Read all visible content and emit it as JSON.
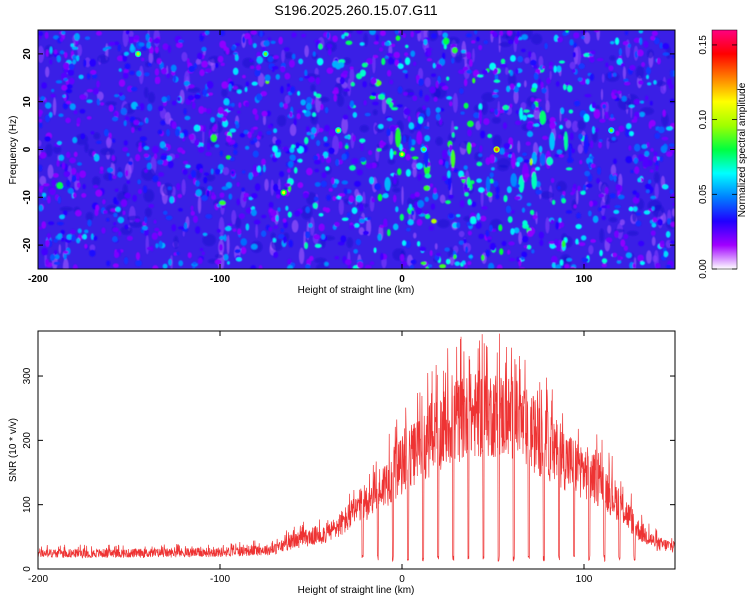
{
  "title": "S196.2025.260.15.07.G11",
  "chart_data": [
    {
      "type": "heatmap",
      "xlabel": "Height of straight line (km)",
      "ylabel": "Frequency (Hz)",
      "xlim": [
        -200,
        150
      ],
      "ylim": [
        -25,
        25
      ],
      "x_ticks": [
        -200,
        -100,
        0,
        100
      ],
      "y_ticks": [
        -20,
        -10,
        0,
        10,
        20
      ],
      "colorbar": {
        "label": "Normalized spectral amplitude",
        "range": [
          0,
          0.16
        ],
        "ticks": [
          0.0,
          0.05,
          0.1,
          0.15
        ],
        "tick_labels": [
          "0.00",
          "0.05",
          "0.10",
          "0.15"
        ],
        "colormap": [
          "#ffffff",
          "#a000ff",
          "#2000ff",
          "#0080ff",
          "#00ffff",
          "#00ff40",
          "#a0ff00",
          "#ffff00",
          "#ff8000",
          "#ff0000",
          "#ff0080"
        ]
      },
      "background_color": "#3a1fe6",
      "hot_spots": [
        {
          "x": -145,
          "y": 20,
          "value": 0.1
        },
        {
          "x": -75,
          "y": 20,
          "value": 0.09
        },
        {
          "x": -65,
          "y": -9,
          "value": 0.11
        },
        {
          "x": -35,
          "y": 4,
          "value": 0.1
        },
        {
          "x": 0,
          "y": -1,
          "value": 0.11
        },
        {
          "x": 12,
          "y": 0,
          "value": 0.09
        },
        {
          "x": 52,
          "y": 0,
          "value": 0.13
        },
        {
          "x": 115,
          "y": 4,
          "value": 0.09
        }
      ]
    },
    {
      "type": "line",
      "xlabel": "Height of straight line (km)",
      "ylabel": "SNR (10 * v/v)",
      "xlim": [
        -200,
        150
      ],
      "ylim": [
        0,
        370
      ],
      "x_ticks": [
        -200,
        -100,
        0,
        100
      ],
      "y_ticks": [
        0,
        100,
        200,
        300
      ],
      "series": [
        {
          "color": "#ee3333",
          "envelope": [
            {
              "x": -200,
              "y": 28
            },
            {
              "x": -150,
              "y": 28
            },
            {
              "x": -100,
              "y": 30
            },
            {
              "x": -70,
              "y": 35
            },
            {
              "x": -60,
              "y": 50
            },
            {
              "x": -40,
              "y": 65
            },
            {
              "x": -30,
              "y": 90
            },
            {
              "x": -20,
              "y": 120
            },
            {
              "x": -10,
              "y": 150
            },
            {
              "x": 0,
              "y": 185
            },
            {
              "x": 10,
              "y": 215
            },
            {
              "x": 20,
              "y": 245
            },
            {
              "x": 30,
              "y": 265
            },
            {
              "x": 40,
              "y": 275
            },
            {
              "x": 50,
              "y": 278
            },
            {
              "x": 60,
              "y": 270
            },
            {
              "x": 70,
              "y": 248
            },
            {
              "x": 80,
              "y": 220
            },
            {
              "x": 90,
              "y": 195
            },
            {
              "x": 100,
              "y": 175
            },
            {
              "x": 110,
              "y": 150
            },
            {
              "x": 120,
              "y": 115
            },
            {
              "x": 130,
              "y": 70
            },
            {
              "x": 140,
              "y": 45
            },
            {
              "x": 150,
              "y": 40
            }
          ],
          "dips_start_x": -22,
          "dip_spacing_km": 8.3,
          "dip_floor": 12
        }
      ]
    }
  ]
}
